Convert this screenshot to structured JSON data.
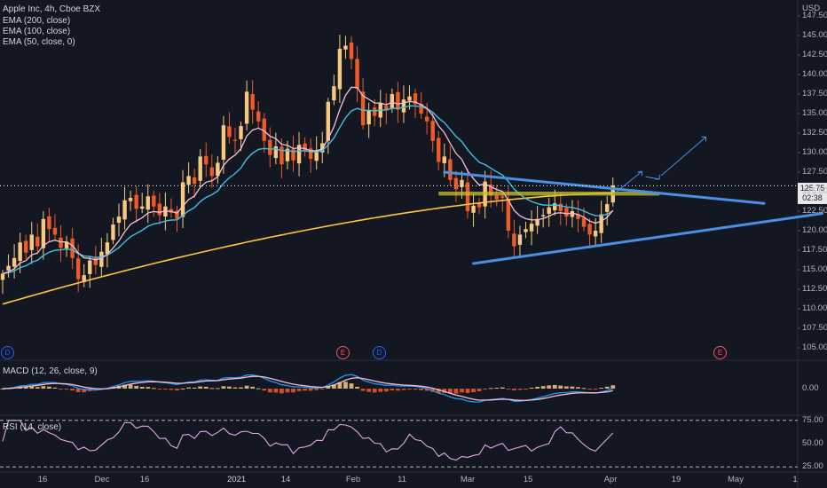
{
  "header": {
    "symbol_line": "Apple Inc, 4h, Cboe BZX",
    "indicators": [
      "EMA (200, close)",
      "EMA (100, close)",
      "EMA (50, close, 0)"
    ],
    "currency": "USD"
  },
  "price_axis": {
    "ticks": [
      "147.50",
      "145.00",
      "142.50",
      "140.00",
      "137.50",
      "135.00",
      "132.50",
      "130.00",
      "127.50",
      "125.00",
      "122.50",
      "120.00",
      "117.50",
      "115.00",
      "112.50",
      "110.00",
      "107.50",
      "105.00"
    ],
    "current_price": "125.75",
    "countdown": "02:38"
  },
  "time_axis": {
    "ticks": [
      "16",
      "Dec",
      "16",
      "2021",
      "14",
      "Feb",
      "11",
      "Mar",
      "15",
      "Apr",
      "19",
      "May",
      "1"
    ]
  },
  "events": [
    {
      "label": "D",
      "color": "#2962ff"
    },
    {
      "label": "E",
      "color": "#f7525f"
    },
    {
      "label": "D",
      "color": "#2962ff"
    },
    {
      "label": "E",
      "color": "#f7525f"
    }
  ],
  "macd": {
    "title": "MACD (12, 26, close, 9)",
    "ticks": [
      "0.00"
    ]
  },
  "rsi": {
    "title": "RSI (14, close)",
    "ticks": [
      "75.00",
      "50.00",
      "25.00"
    ]
  },
  "colors": {
    "background": "#131722",
    "up": "#f7c97e",
    "down": "#f05a28",
    "ema200": "#ffc53d",
    "ema100": "#3fc1e0",
    "ema50": "#f7bfd6",
    "trendline": "#4a90e2",
    "zone": "#c8c232",
    "macd_line": "#2196f3",
    "signal_line": "#f8bbd0",
    "rsi_line": "#e1a6e6"
  },
  "chart_data": {
    "type": "candlestick",
    "title": "Apple Inc, 4h, Cboe BZX",
    "ylim": [
      103.8,
      148.5
    ],
    "close_series": [
      114.5,
      115.5,
      116.5,
      118.5,
      117.2,
      119.5,
      118.0,
      121.5,
      120.2,
      119.5,
      117.8,
      118.6,
      116.5,
      113.8,
      114.3,
      116.2,
      115.6,
      117.3,
      118.5,
      120.8,
      121.8,
      123.9,
      124.2,
      122.8,
      123.1,
      124.4,
      123.1,
      122.0,
      123.1,
      122.3,
      121.5,
      126.2,
      127.0,
      126.0,
      129.5,
      128.5,
      127.0,
      128.7,
      133.5,
      132.0,
      131.5,
      133.4,
      137.8,
      135.5,
      134.0,
      131.5,
      129.7,
      130.8,
      128.5,
      130.5,
      129.0,
      131.0,
      130.2,
      129.2,
      130.3,
      131.2,
      136.5,
      138.5,
      143.3,
      143.7,
      142.0,
      138.2,
      133.5,
      135.4,
      134.7,
      136.3,
      135.4,
      137.5,
      135.5,
      136.8,
      137.2,
      136.2,
      135.0,
      134.0,
      131.5,
      128.8,
      129.5,
      126.5,
      125.3,
      126.5,
      122.5,
      123.2,
      123.0,
      126.3,
      124.5,
      124.0,
      124.2,
      120.0,
      118.0,
      119.5,
      120.2,
      120.9,
      121.5,
      122.0,
      123.0,
      123.5,
      122.5,
      121.8,
      122.5,
      121.5,
      120.5,
      119.5,
      120.0,
      122.1,
      123.4,
      125.8
    ],
    "ema200_endpoints": [
      {
        "x": 0,
        "y": 110.6
      },
      {
        "x": 105,
        "y": 124.8
      }
    ],
    "trendlines": [
      {
        "name": "upper",
        "from": [
          76,
          127.5
        ],
        "to": [
          131,
          123.5
        ]
      },
      {
        "name": "lower",
        "from": [
          81,
          115.8
        ],
        "to": [
          141,
          122.2
        ]
      }
    ],
    "resistance_zone": [
      124.5,
      125.0
    ],
    "projection": [
      124.6,
      127.6,
      126.6,
      132.0
    ]
  }
}
